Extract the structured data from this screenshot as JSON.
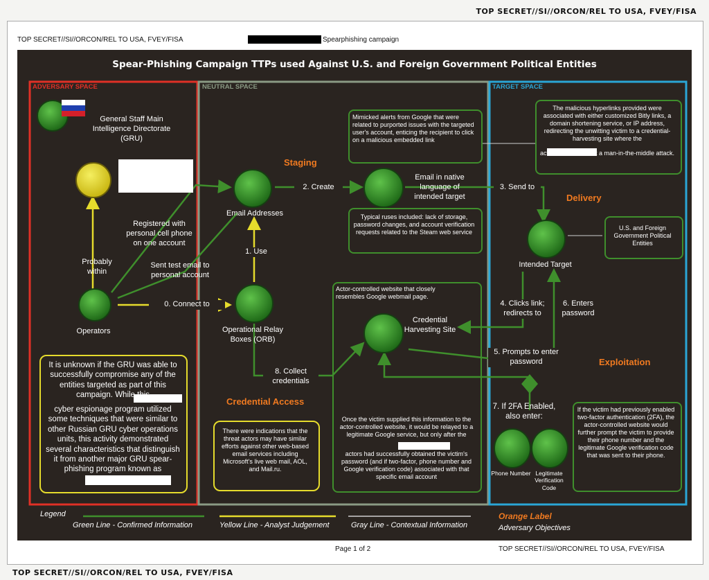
{
  "classification": "TOP SECRET//SI//ORCON/REL TO USA, FVEY/FISA",
  "doc_header": {
    "classification": "TOP SECRET//SI//ORCON/REL TO USA, FVEY/FISA",
    "topic": "Spearphishing campaign"
  },
  "title": "Spear-Phishing Campaign TTPs used Against U.S. and Foreign Government Political Entities",
  "sections": {
    "adversary": "ADVERSARY SPACE",
    "neutral": "NEUTRAL SPACE",
    "target": "TARGET SPACE"
  },
  "adversary": {
    "gru": "General Staff Main Intelligence Directorate (GRU)",
    "operators": "Operators",
    "probably_within": "Probably within",
    "registered": "Registered with personal cell phone on one account",
    "sent_test": "Sent test email to personal account",
    "connect": "0. Connect to",
    "unknown_note_1": "It is unknown if the GRU was able to successfully compromise any of the entities targeted as part of this campaign. While this",
    "unknown_note_2": "cyber espionage program utilized some techniques that were similar to other Russian GRU cyber operations units, this activity demonstrated several characteristics that distinguish it from another major GRU spear-phishing program known as"
  },
  "neutral": {
    "staging": "Staging",
    "email_addresses": "Email Addresses",
    "create": "2. Create",
    "mimicked": "Mimicked alerts from Google that were related to purported issues with the targeted user's account, enticing the recipient to click on a malicious embedded link",
    "email_native": "Email in native language of intended target",
    "ruses": "Typical ruses included: lack of storage, password changes, and account verification requests related to the Steam web service",
    "use": "1. Use",
    "orb": "Operational Relay Boxes (ORB)",
    "actor_site": "Actor-controlled website that closely resembles Google webmail page.",
    "cred_site": "Credential Harvesting Site",
    "collect": "8. Collect credentials",
    "cred_access": "Credential Access",
    "indications": "There were indications that the threat actors may have similar efforts against other web-based email services including Microsoft's live web mail, AOL, and Mail.ru.",
    "relay_note_1": "Once the victim supplied this information to the actor-controlled website, it would be relayed to a legitimate Google service, but only after the",
    "relay_note_2": "actors had successfully obtained the victim's password (and if two-factor, phone number and Google verification code) associated with that specific email account"
  },
  "target": {
    "hyperlinks_1": "The malicious hyperlinks provided were associated with either customized Bitly links, a domain shortening service, or IP address, redirecting the unwitting victim to a credential-harvesting site where the",
    "hyperlinks_2": "actors could conduct a man-in-the-middle attack.",
    "send": "3. Send to",
    "delivery": "Delivery",
    "us_foreign": "U.S. and Foreign Government Political Entities",
    "intended": "Intended Target",
    "clicks": "4. Clicks link; redirects to",
    "enters": "6. Enters password",
    "prompts": "5. Prompts to enter password",
    "exploitation": "Exploitation",
    "twofa": "7. If 2FA Enabled, also enter:",
    "phone": "Phone Number",
    "code": "Legitimate Verification Code",
    "twofa_note": "If the victim had previously enabled two-factor authentication (2FA), the actor-controlled website would further prompt the victim to provide their phone number and the legitimate Google verification code that was sent to their phone."
  },
  "legend": {
    "label": "Legend",
    "green": "Green Line - Confirmed Information",
    "yellow": "Yellow Line - Analyst Judgement",
    "gray": "Gray Line - Contextual Information",
    "orange_title": "Orange Label",
    "orange_sub": "Adversary Objectives"
  },
  "footer": {
    "page": "Page 1 of 2",
    "classification": "TOP SECRET//SI//ORCON/REL TO USA, FVEY/FISA"
  },
  "colors": {
    "adversary": "#e03026",
    "neutral": "#8a9a84",
    "target": "#2aa6d6",
    "green": "#3f8f2c",
    "yellow": "#e6dc2c",
    "orange": "#f07a20"
  }
}
